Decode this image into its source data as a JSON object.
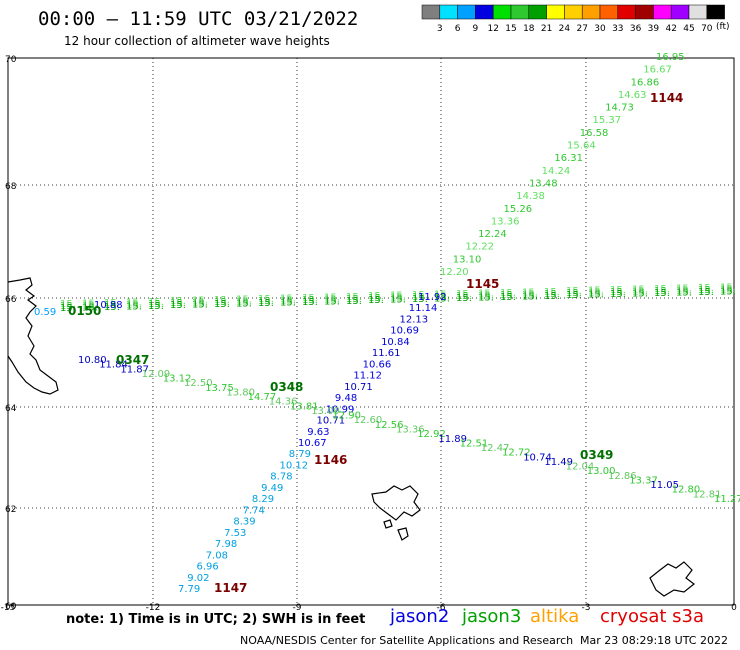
{
  "header": {
    "title": "00:00 – 11:59 UTC 03/21/2022",
    "subtitle": "12 hour collection of altimeter wave heights"
  },
  "legend": {
    "values": [
      "3",
      "6",
      "9",
      "12",
      "15",
      "18",
      "21",
      "24",
      "27",
      "30",
      "33",
      "36",
      "39",
      "42",
      "45",
      "70"
    ],
    "unit": "(ft)",
    "colors": [
      "#7f7f7f",
      "#00e0ff",
      "#00a0ff",
      "#0000e0",
      "#00e000",
      "#30c830",
      "#00a000",
      "#ffff00",
      "#ffd000",
      "#ffa000",
      "#ff6000",
      "#e00000",
      "#a00000",
      "#ff00ff",
      "#a000ff",
      "#e0e0e0",
      "#000000"
    ]
  },
  "axes": {
    "lat_labels": [
      "70",
      "68",
      "66",
      "64",
      "62",
      "60"
    ],
    "lon_labels": [
      "-15",
      "-12",
      "-9",
      "-6",
      "-3",
      "0"
    ]
  },
  "tracks": {
    "jason2_cryosat_ascending": {
      "values": [
        "7.79",
        "9.02",
        "6.96",
        "7.08",
        "7.98",
        "7.53",
        "8.39",
        "7.74",
        "8.29",
        "9.49",
        "8.78",
        "10.12",
        "8.79",
        "10.67",
        "9.63",
        "10.71",
        "10.99",
        "9.48",
        "10.71",
        "11.12",
        "10.66",
        "11.61",
        "10.84",
        "10.69",
        "12.13",
        "11.14",
        "11.92"
      ]
    },
    "jason3_ascending": {
      "values": [
        "12.20",
        "13.10",
        "12.22",
        "12.24",
        "13.36",
        "15.26",
        "14.38",
        "13.48",
        "14.24",
        "16.31",
        "15.64",
        "16.58",
        "15.37",
        "14.73",
        "14.63",
        "16.86",
        "16.67",
        "16.95"
      ]
    },
    "southern_track": {
      "values": [
        "10.80",
        "11.84",
        "11.87",
        "12.09",
        "13.12",
        "12.50",
        "13.75",
        "13.80",
        "14.77",
        "14.36",
        "13.81",
        "13.09",
        "12.90",
        "12.60",
        "12.56",
        "13.36",
        "12.92",
        "11.89",
        "12.51",
        "12.47",
        "12.72",
        "10.74",
        "11.49",
        "12.04",
        "13.00",
        "12.86",
        "13.37",
        "11.05",
        "12.80",
        "12.81",
        "11.27"
      ]
    },
    "west_labels": [
      "0.59",
      "10.88"
    ]
  },
  "time_labels": [
    {
      "text": "1144",
      "color": "#7a0000"
    },
    {
      "text": "1145",
      "color": "#7a0000"
    },
    {
      "text": "1146",
      "color": "#7a0000"
    },
    {
      "text": "1147",
      "color": "#7a0000"
    },
    {
      "text": "0347",
      "color": "#007000"
    },
    {
      "text": "0348",
      "color": "#007000"
    },
    {
      "text": "0349",
      "color": "#007000"
    },
    {
      "text": "0150",
      "color": "#007000"
    }
  ],
  "footer": {
    "note": "note:  1) Time is in UTC;  2) SWH is in feet",
    "satellites": [
      {
        "name": "jason2",
        "color": "#0000e0"
      },
      {
        "name": "jason3",
        "color": "#00a000"
      },
      {
        "name": "altika",
        "color": "#ffa000"
      },
      {
        "name": "cryosat s3a",
        "color": "#e00000"
      }
    ],
    "credit": "NOAA/NESDIS Center for Satellite Applications and Research",
    "timestamp": "Mar 23 08:29:18 UTC 2022"
  }
}
